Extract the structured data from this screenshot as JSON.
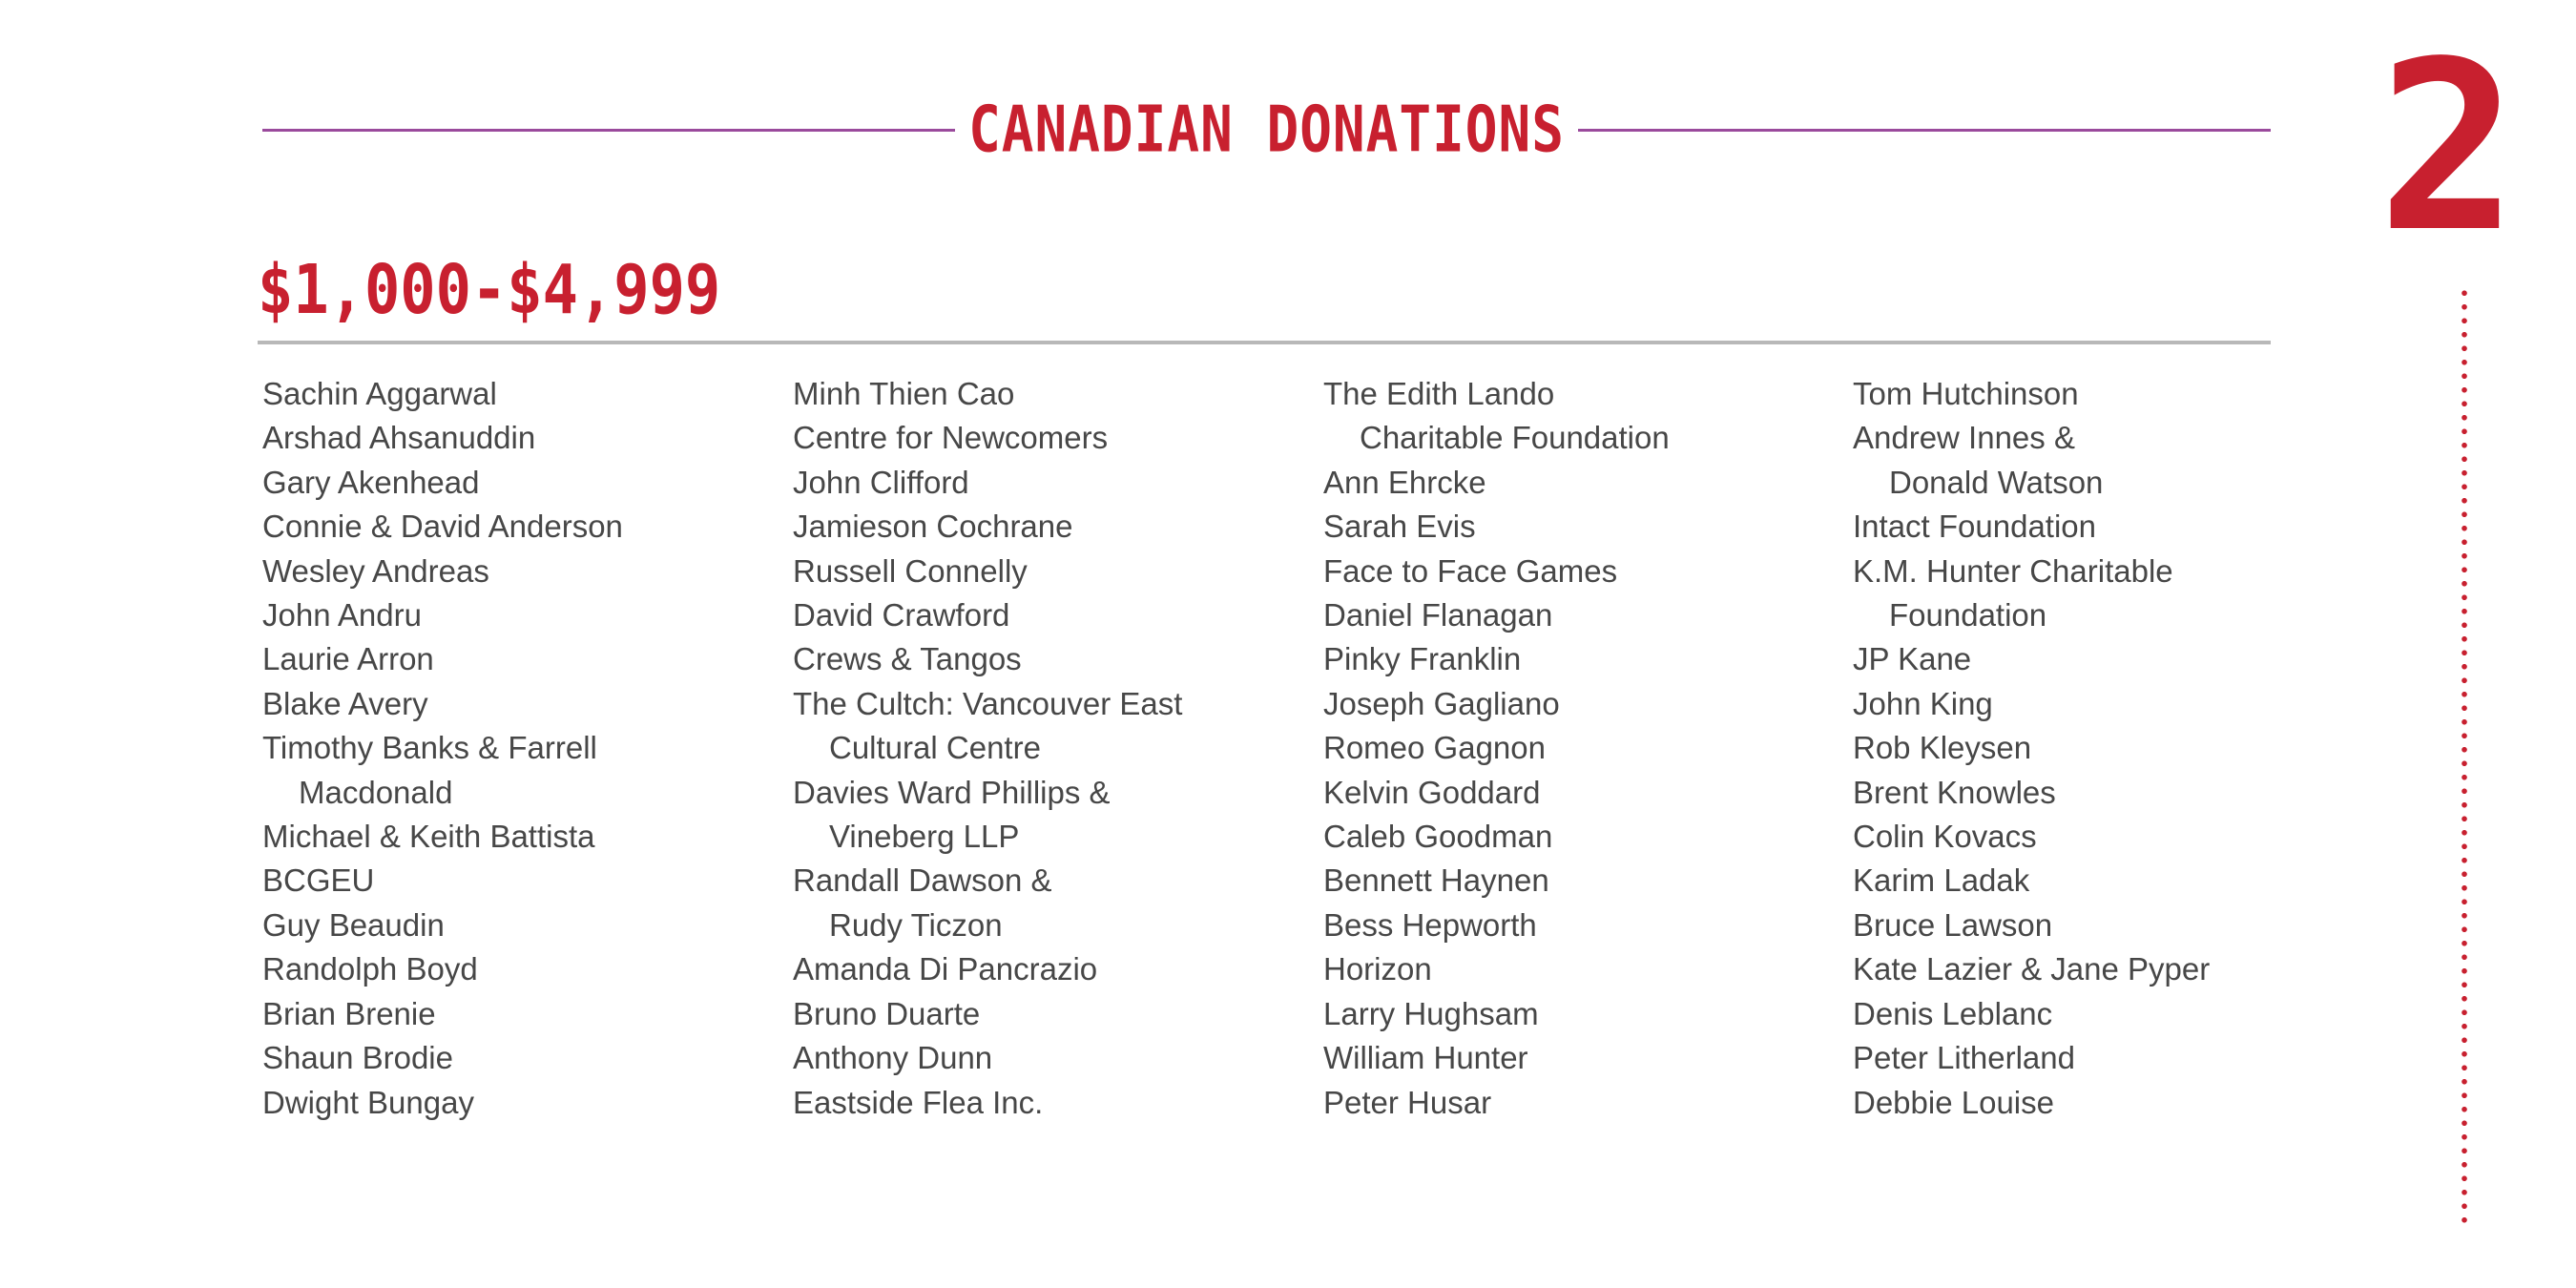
{
  "header": {
    "title": "CANADIAN DONATIONS",
    "page_number": "2"
  },
  "section": {
    "title": "$1,000-$4,999",
    "columns": [
      [
        "Sachin Aggarwal",
        "Arshad Ahsanuddin",
        "Gary Akenhead",
        "Connie & David Anderson",
        "Wesley Andreas",
        "John Andru",
        "Laurie Arron",
        "Blake Avery",
        [
          "Timothy Banks & Farrell",
          "Macdonald"
        ],
        "Michael & Keith Battista",
        "BCGEU",
        "Guy Beaudin",
        "Randolph Boyd",
        "Brian Brenie",
        "Shaun Brodie",
        "Dwight Bungay"
      ],
      [
        "Minh Thien Cao",
        "Centre for Newcomers",
        "John Clifford",
        "Jamieson Cochrane",
        "Russell Connelly",
        "David Crawford",
        "Crews & Tangos",
        [
          "The Cultch: Vancouver East",
          "Cultural Centre"
        ],
        [
          "Davies Ward Phillips &",
          "Vineberg LLP"
        ],
        [
          "Randall Dawson &",
          "Rudy Ticzon"
        ],
        "Amanda Di Pancrazio",
        "Bruno Duarte",
        "Anthony Dunn",
        "Eastside Flea Inc."
      ],
      [
        [
          "The Edith Lando",
          "Charitable Foundation"
        ],
        "Ann Ehrcke",
        "Sarah Evis",
        "Face to Face Games",
        "Daniel Flanagan",
        "Pinky Franklin",
        "Joseph Gagliano",
        "Romeo Gagnon",
        "Kelvin Goddard",
        "Caleb Goodman",
        "Bennett Haynen",
        "Bess Hepworth",
        "Horizon",
        "Larry Hughsam",
        "William Hunter",
        "Peter Husar"
      ],
      [
        "Tom Hutchinson",
        [
          "Andrew Innes &",
          "Donald Watson"
        ],
        "Intact Foundation",
        [
          "K.M. Hunter Charitable",
          "Foundation"
        ],
        "JP Kane",
        "John King",
        "Rob Kleysen",
        "Brent Knowles",
        "Colin Kovacs",
        "Karim Ladak",
        "Bruce Lawson",
        "Kate Lazier & Jane Pyper",
        "Denis Leblanc",
        "Peter Litherland",
        "Debbie Louise"
      ]
    ]
  }
}
